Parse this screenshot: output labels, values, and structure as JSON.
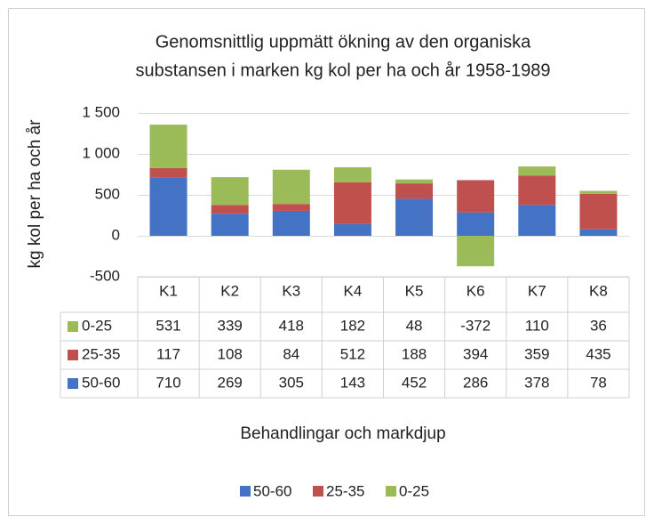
{
  "chart_data": {
    "type": "bar",
    "stacked": true,
    "title": [
      "Genomsnittlig uppmätt ökning av den organiska",
      "substansen i marken kg kol per ha och år 1958-1989"
    ],
    "ylabel": "kg kol per ha och år",
    "xlabel": "Behandlingar och  markdjup",
    "categories": [
      "K1",
      "K2",
      "K3",
      "K4",
      "K5",
      "K6",
      "K7",
      "K8"
    ],
    "series": [
      {
        "name": "50-60",
        "color": "#4472c4",
        "values": [
          710,
          269,
          305,
          143,
          452,
          286,
          378,
          78
        ]
      },
      {
        "name": "25-35",
        "color": "#c0504d",
        "values": [
          117,
          108,
          84,
          512,
          188,
          394,
          359,
          435
        ]
      },
      {
        "name": "0-25",
        "color": "#9bbb59",
        "values": [
          531,
          339,
          418,
          182,
          48,
          -372,
          110,
          36
        ]
      }
    ],
    "ylim": [
      -500,
      1500
    ],
    "yticks": [
      -500,
      0,
      500,
      {
        "value": 1000,
        "label": "1 000"
      },
      {
        "value": 1500,
        "label": "1 500"
      }
    ],
    "grid": true,
    "legend": "bottom",
    "data_table": true
  }
}
